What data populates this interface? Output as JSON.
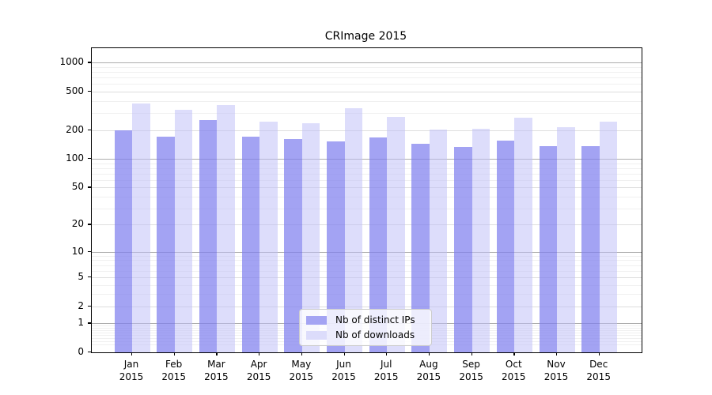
{
  "page": {
    "background": "#ffffff"
  },
  "chart_data": {
    "type": "bar",
    "title": "CRImage 2015",
    "categories": [
      "Jan",
      "Feb",
      "Mar",
      "Apr",
      "May",
      "Jun",
      "Jul",
      "Aug",
      "Sep",
      "Oct",
      "Nov",
      "Dec"
    ],
    "year_label": "2015",
    "series": [
      {
        "name": "Nb of distinct IPs",
        "swatch_color": "#a4a4f3",
        "fill": "rgba(128,128,238,0.72)",
        "values": [
          200,
          169,
          252,
          170,
          161,
          153,
          168,
          144,
          133,
          156,
          135,
          135
        ]
      },
      {
        "name": "Nb of downloads",
        "swatch_color": "#dcdcfb",
        "fill": "rgba(189,189,248,0.52)",
        "values": [
          377,
          326,
          366,
          243,
          234,
          337,
          274,
          201,
          206,
          269,
          216,
          245
        ]
      }
    ],
    "xlabel": "",
    "ylabel": "",
    "yscale": "log1p",
    "ylim": [
      0,
      1400
    ],
    "yticks": [
      0,
      1,
      2,
      5,
      10,
      20,
      50,
      100,
      200,
      500,
      1000
    ],
    "grid": {
      "pow10_lines": [
        1,
        10,
        100,
        1000
      ],
      "mid_lines": [
        2,
        5,
        20,
        50,
        200,
        500
      ],
      "minor_lines": [
        0.2,
        0.3,
        0.4,
        0.5,
        0.6,
        0.7,
        0.8,
        0.9,
        3,
        4,
        6,
        7,
        8,
        9,
        30,
        40,
        60,
        70,
        80,
        90,
        300,
        400,
        600,
        700,
        800,
        900
      ]
    },
    "legend_position": "lower-center",
    "grid_on": true
  }
}
